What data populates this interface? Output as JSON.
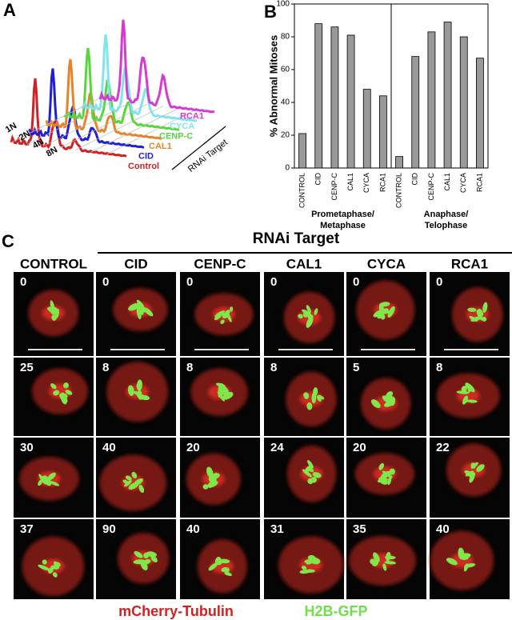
{
  "panel_a": {
    "label": "A",
    "series": [
      {
        "name": "Control",
        "color": "#d42020"
      },
      {
        "name": "CID",
        "color": "#1f1fd6"
      },
      {
        "name": "CAL1",
        "color": "#e8832a"
      },
      {
        "name": "CENP-C",
        "color": "#55d63a"
      },
      {
        "name": "CYCA",
        "color": "#7fe6ef"
      },
      {
        "name": "RCA1",
        "color": "#d63ad2"
      }
    ],
    "x_labels": [
      "1N",
      "2N",
      "4N",
      "8N"
    ],
    "axis_title": "RNAi Target"
  },
  "chart_data": {
    "type": "bar",
    "label": "B",
    "ylabel": "% Abnormal Mitoses",
    "categories": [
      "CONTROL",
      "CID",
      "CENP-C",
      "CAL1",
      "CYCA",
      "RCA1",
      "CONTROL",
      "CID",
      "CENP-C",
      "CAL1",
      "CYCA",
      "RCA1"
    ],
    "values": [
      21,
      88,
      86,
      81,
      48,
      44,
      7,
      68,
      83,
      89,
      80,
      67
    ],
    "groups": [
      [
        "Prometaphase/",
        "Metaphase"
      ],
      [
        "Anaphase/",
        "Telophase"
      ]
    ],
    "color": "#999999",
    "ylim": [
      0,
      100
    ],
    "yticks": [
      0,
      20,
      40,
      60,
      80,
      100
    ]
  },
  "panel_c": {
    "label": "C",
    "header": "RNAi Target",
    "columns": [
      "CONTROL",
      "CID",
      "CENP-C",
      "CAL1",
      "CYCA",
      "RCA1"
    ],
    "times": [
      [
        0,
        0,
        0,
        0,
        0,
        0
      ],
      [
        25,
        8,
        8,
        8,
        5,
        8
      ],
      [
        30,
        40,
        20,
        24,
        20,
        22
      ],
      [
        37,
        90,
        40,
        31,
        35,
        40
      ]
    ],
    "legend": [
      {
        "text": "mCherry-Tubulin",
        "color": "#d42020"
      },
      {
        "text": "H2B-GFP",
        "color": "#6ee04a"
      }
    ]
  }
}
